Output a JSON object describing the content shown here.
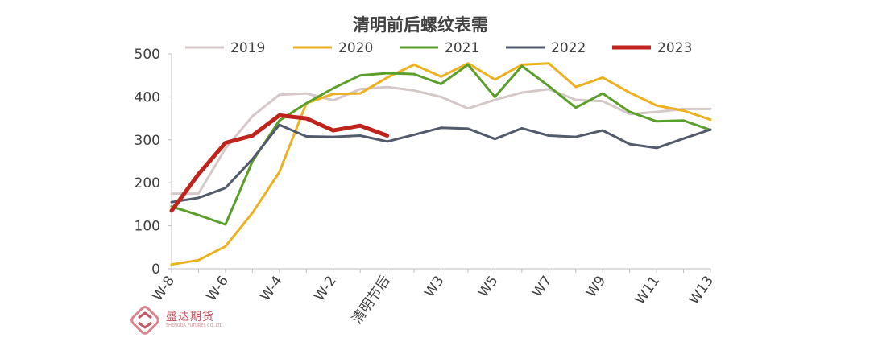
{
  "chart_data": {
    "type": "line",
    "title": "清明前后螺纹表需",
    "xlabel": "",
    "ylabel": "",
    "ylim": [
      0,
      500
    ],
    "yticks": [
      0,
      100,
      200,
      300,
      400,
      500
    ],
    "categories": [
      "W-8",
      "W-7",
      "W-6",
      "W-5",
      "W-4",
      "W-3",
      "W-2",
      "W-1",
      "清明节后",
      "W2",
      "W3",
      "W4",
      "W5",
      "W6",
      "W7",
      "W8",
      "W9",
      "W10",
      "W11",
      "W12",
      "W13"
    ],
    "xtick_labels": [
      "W-8",
      "W-6",
      "W-4",
      "W-2",
      "清明节后",
      "W3",
      "W5",
      "W7",
      "W9",
      "W11",
      "W13"
    ],
    "legend_position": "top",
    "series": [
      {
        "name": "2019",
        "color": "#d4c8c8",
        "width": 3,
        "values": [
          175,
          175,
          280,
          355,
          405,
          408,
          392,
          418,
          423,
          415,
          400,
          373,
          393,
          410,
          418,
          393,
          390,
          360,
          365,
          372,
          372
        ]
      },
      {
        "name": "2020",
        "color": "#edb120",
        "width": 3,
        "values": [
          10,
          20,
          52,
          130,
          225,
          385,
          407,
          408,
          445,
          475,
          447,
          478,
          440,
          475,
          478,
          423,
          445,
          410,
          380,
          368,
          347
        ]
      },
      {
        "name": "2021",
        "color": "#5b9f2b",
        "width": 3,
        "values": [
          145,
          125,
          103,
          250,
          345,
          385,
          420,
          450,
          455,
          453,
          430,
          475,
          400,
          472,
          425,
          375,
          408,
          365,
          343,
          345,
          323
        ]
      },
      {
        "name": "2022",
        "color": "#525a6b",
        "width": 3,
        "values": [
          155,
          165,
          188,
          255,
          335,
          308,
          307,
          310,
          296,
          312,
          328,
          326,
          302,
          327,
          310,
          307,
          322,
          290,
          281,
          303,
          324
        ]
      },
      {
        "name": "2023",
        "color": "#c0231b",
        "width": 5,
        "values": [
          135,
          220,
          293,
          310,
          357,
          350,
          322,
          333,
          310,
          null,
          null,
          null,
          null,
          null,
          null,
          null,
          null,
          null,
          null,
          null,
          null
        ]
      }
    ]
  },
  "watermark": {
    "brand": "盛达期货",
    "subtitle": "SHENGDA FUTURES CO.,LTD."
  }
}
